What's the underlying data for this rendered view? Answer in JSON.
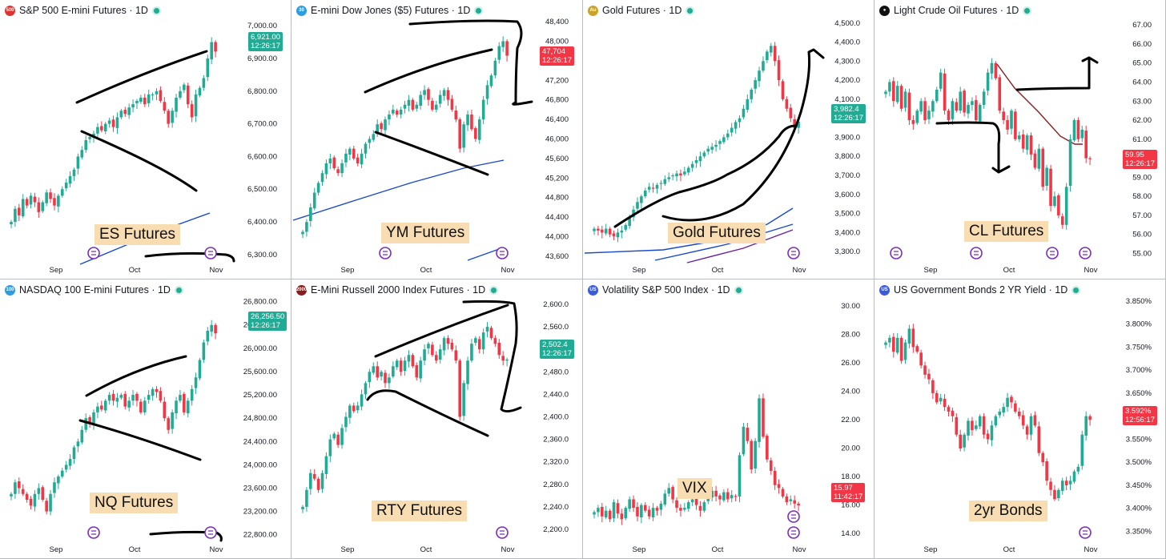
{
  "colors": {
    "up": "#22ab94",
    "down": "#f23645",
    "ma_blue": "#1848cc",
    "ma_purple": "#6a1fa0",
    "ink": "#000000",
    "tag_bg": "#f9ddb2"
  },
  "panels": [
    {
      "title": "S&P 500 E-mini Futures · 1D",
      "icon_text": "500",
      "icon_color": "#e03131",
      "tag": "ES Futures",
      "price": "6,921.00",
      "time": "12:26:17",
      "price_color": "#22ab94"
    },
    {
      "title": "E-mini Dow Jones ($5) Futures · 1D",
      "icon_text": "30",
      "icon_color": "#2f9be0",
      "tag": "YM Futures",
      "price": "47,704",
      "time": "12:26:17",
      "price_color": "#f23645"
    },
    {
      "title": "Gold Futures · 1D",
      "icon_text": "Au",
      "icon_color": "#c9a227",
      "tag": "Gold Futures",
      "price": "3,982.4",
      "time": "12:26:17",
      "price_color": "#22ab94"
    },
    {
      "title": "Light Crude Oil Futures · 1D",
      "icon_text": "●",
      "icon_color": "#111111",
      "tag": "CL Futures",
      "price": "59.95",
      "time": "12:26:17",
      "price_color": "#f23645"
    },
    {
      "title": "NASDAQ 100 E-mini Futures · 1D",
      "icon_text": "100",
      "icon_color": "#2f9be0",
      "tag": "NQ Futures",
      "price": "26,256.50",
      "time": "12:26:17",
      "price_color": "#22ab94"
    },
    {
      "title": "E-Mini Russell 2000 Index Futures · 1D",
      "icon_text": "2000",
      "icon_color": "#8b1c1c",
      "tag": "RTY Futures",
      "price": "2,502.4",
      "time": "12:26:17",
      "price_color": "#22ab94"
    },
    {
      "title": "Volatility S&P 500 Index · 1D",
      "icon_text": "US",
      "icon_color": "#3b5bdb",
      "tag": "VIX",
      "price": "15.97",
      "time": "11:42:17",
      "price_color": "#f23645"
    },
    {
      "title": "US Government Bonds 2 YR Yield · 1D",
      "icon_text": "US",
      "icon_color": "#3b5bdb",
      "tag": "2yr Bonds",
      "price": "3.592%",
      "time": "12:56:17",
      "price_color": "#f23645"
    }
  ],
  "chart_data": [
    {
      "type": "candlestick",
      "title": "S&P 500 E-mini Futures · 1D",
      "ylim": [
        6280,
        7020
      ],
      "y_ticks": [
        "7,000.00",
        "6,900.00",
        "6,800.00",
        "6,700.00",
        "6,600.00",
        "6,500.00",
        "6,400.00",
        "6,300.00"
      ],
      "x_labels": [
        "Sep",
        "Oct",
        "Nov"
      ],
      "closes": [
        6400,
        6440,
        6420,
        6470,
        6450,
        6480,
        6460,
        6430,
        6460,
        6490,
        6470,
        6450,
        6480,
        6500,
        6520,
        6540,
        6560,
        6600,
        6620,
        6650,
        6660,
        6670,
        6690,
        6680,
        6700,
        6710,
        6690,
        6720,
        6740,
        6730,
        6750,
        6760,
        6770,
        6780,
        6760,
        6790,
        6790,
        6800,
        6770,
        6740,
        6700,
        6740,
        6780,
        6800,
        6820,
        6760,
        6720,
        6790,
        6810,
        6840,
        6900,
        6950,
        6921
      ]
    },
    {
      "type": "candlestick",
      "title": "E-mini Dow Jones ($5) Futures · 1D",
      "ylim": [
        43500,
        48450
      ],
      "y_ticks": [
        "48,400",
        "48,000",
        "47,600",
        "47,200",
        "46,800",
        "46,400",
        "46,000",
        "45,600",
        "45,200",
        "44,800",
        "44,400",
        "44,000",
        "43,600"
      ],
      "x_labels": [
        "Sep",
        "Oct",
        "Nov"
      ],
      "closes": [
        44100,
        44300,
        44600,
        44900,
        45100,
        45300,
        45500,
        45600,
        45400,
        45300,
        45500,
        45700,
        45800,
        45600,
        45500,
        45700,
        45900,
        46000,
        46100,
        46300,
        46200,
        46400,
        46500,
        46600,
        46500,
        46600,
        46700,
        46800,
        46600,
        46700,
        46900,
        47000,
        46800,
        46600,
        46700,
        46900,
        47000,
        46800,
        46600,
        46400,
        45800,
        46300,
        46500,
        46200,
        46000,
        46400,
        46800,
        47100,
        47300,
        47600,
        47900,
        48000,
        47704
      ]
    },
    {
      "type": "candlestick",
      "title": "Gold Futures · 1D",
      "ylim": [
        3250,
        4520
      ],
      "y_ticks": [
        "4,500.0",
        "4,400.0",
        "4,300.0",
        "4,200.0",
        "4,100.0",
        "4,000.0",
        "3,900.0",
        "3,800.0",
        "3,700.0",
        "3,600.0",
        "3,500.0",
        "3,400.0",
        "3,300.0"
      ],
      "x_labels": [
        "Sep",
        "Oct",
        "Nov"
      ],
      "closes": [
        3420,
        3410,
        3400,
        3420,
        3390,
        3380,
        3400,
        3410,
        3440,
        3480,
        3520,
        3560,
        3590,
        3620,
        3640,
        3630,
        3650,
        3660,
        3680,
        3690,
        3700,
        3710,
        3700,
        3720,
        3740,
        3760,
        3780,
        3800,
        3820,
        3840,
        3850,
        3860,
        3880,
        3900,
        3920,
        3950,
        3980,
        4000,
        4050,
        4100,
        4150,
        4200,
        4250,
        4300,
        4350,
        4380,
        4300,
        4200,
        4100,
        4050,
        4000,
        3950,
        3982
      ]
    },
    {
      "type": "candlestick",
      "title": "Light Crude Oil Futures · 1D",
      "ylim": [
        54.6,
        67.3
      ],
      "y_ticks": [
        "67.00",
        "66.00",
        "65.00",
        "64.00",
        "63.00",
        "62.00",
        "61.00",
        "60.00",
        "59.00",
        "58.00",
        "57.00",
        "56.00",
        "55.00"
      ],
      "x_labels": [
        "Sep",
        "Oct",
        "Nov"
      ],
      "closes": [
        63.5,
        64,
        63,
        63.8,
        62.6,
        63.5,
        62,
        61.8,
        62.5,
        63,
        62,
        62.5,
        63,
        63.6,
        64.5,
        62.5,
        62,
        63,
        62.5,
        63.5,
        62.4,
        62.8,
        63,
        62,
        62.8,
        63.5,
        64.5,
        65,
        64.2,
        62.5,
        62,
        61.5,
        62.5,
        61,
        61.2,
        60.5,
        61.2,
        60.2,
        59.5,
        60.5,
        58.5,
        59.5,
        57.5,
        58,
        57,
        56.5,
        58.5,
        61,
        62,
        61,
        61.5,
        60,
        59.95
      ]
    },
    {
      "type": "candlestick",
      "title": "NASDAQ 100 E-mini Futures · 1D",
      "ylim": [
        22700,
        26850
      ],
      "y_ticks": [
        "26,800.00",
        "26,400.00",
        "26,000.00",
        "25,600.00",
        "25,200.00",
        "24,800.00",
        "24,400.00",
        "24,000.00",
        "23,600.00",
        "23,200.00",
        "22,800.00"
      ],
      "x_labels": [
        "Sep",
        "Oct",
        "Nov"
      ],
      "closes": [
        23500,
        23700,
        23600,
        23500,
        23400,
        23300,
        23500,
        23600,
        23400,
        23200,
        23500,
        23700,
        23800,
        23900,
        24000,
        24100,
        24300,
        24400,
        24600,
        24800,
        24700,
        24900,
        25000,
        24950,
        25100,
        25200,
        25100,
        25150,
        25200,
        25000,
        25100,
        25200,
        25100,
        24900,
        25100,
        25200,
        25300,
        25250,
        25100,
        24800,
        24600,
        24900,
        25100,
        25200,
        24900,
        25100,
        25300,
        25500,
        25800,
        26100,
        26300,
        26400,
        26256
      ]
    },
    {
      "type": "candlestick",
      "title": "E-Mini Russell 2000 Index Futures · 1D",
      "ylim": [
        2180,
        2610
      ],
      "y_ticks": [
        "2,600.0",
        "2,560.0",
        "2,520.0",
        "2,480.0",
        "2,440.0",
        "2,400.0",
        "2,360.0",
        "2,320.0",
        "2,280.0",
        "2,240.0",
        "2,200.0"
      ],
      "x_labels": [
        "Sep",
        "Oct",
        "Nov"
      ],
      "closes": [
        2240,
        2270,
        2300,
        2290,
        2270,
        2300,
        2330,
        2360,
        2370,
        2350,
        2380,
        2400,
        2420,
        2410,
        2420,
        2440,
        2460,
        2480,
        2490,
        2470,
        2480,
        2460,
        2470,
        2490,
        2500,
        2480,
        2500,
        2510,
        2490,
        2470,
        2500,
        2520,
        2530,
        2510,
        2500,
        2520,
        2540,
        2530,
        2520,
        2500,
        2400,
        2460,
        2500,
        2530,
        2540,
        2520,
        2550,
        2560,
        2540,
        2530,
        2510,
        2500,
        2502
      ]
    },
    {
      "type": "candlestick",
      "title": "Volatility S&P 500 Index · 1D",
      "ylim": [
        13.5,
        30.5
      ],
      "y_ticks": [
        "30.00",
        "28.00",
        "26.00",
        "24.00",
        "22.00",
        "20.00",
        "18.00",
        "16.00",
        "14.00"
      ],
      "x_labels": [
        "Sep",
        "Oct",
        "Nov"
      ],
      "closes": [
        15.5,
        15.8,
        15.2,
        15.6,
        15.0,
        16.2,
        15.4,
        15.0,
        15.8,
        16.4,
        15.8,
        15.2,
        16.0,
        15.6,
        15.2,
        15.8,
        15.6,
        16.1,
        16.8,
        17.2,
        16.4,
        15.8,
        15.6,
        15.8,
        16.2,
        16.4,
        16.0,
        15.6,
        16.2,
        16.6,
        17.0,
        16.6,
        16.4,
        16.9,
        16.4,
        16.7,
        16.6,
        19.5,
        21.5,
        20.5,
        18.5,
        20.5,
        23.5,
        20.8,
        19.2,
        18.4,
        17.4,
        17.2,
        16.6,
        16.2,
        16.4,
        16.1,
        15.97
      ]
    },
    {
      "type": "candlestick",
      "title": "US Government Bonds 2 YR Yield · 1D",
      "ylim": [
        3.33,
        3.855
      ],
      "y_ticks": [
        "3.850%",
        "3.800%",
        "3.750%",
        "3.700%",
        "3.650%",
        "3.600%",
        "3.550%",
        "3.500%",
        "3.450%",
        "3.400%",
        "3.350%"
      ],
      "x_labels": [
        "Sep",
        "Oct",
        "Nov"
      ],
      "closes": [
        3.76,
        3.77,
        3.74,
        3.77,
        3.72,
        3.76,
        3.79,
        3.75,
        3.74,
        3.71,
        3.69,
        3.68,
        3.65,
        3.63,
        3.64,
        3.62,
        3.61,
        3.6,
        3.56,
        3.53,
        3.56,
        3.59,
        3.57,
        3.58,
        3.6,
        3.56,
        3.55,
        3.58,
        3.6,
        3.61,
        3.62,
        3.64,
        3.63,
        3.61,
        3.6,
        3.58,
        3.56,
        3.6,
        3.58,
        3.52,
        3.5,
        3.46,
        3.44,
        3.42,
        3.44,
        3.46,
        3.45,
        3.46,
        3.48,
        3.49,
        3.56,
        3.6,
        3.592
      ]
    }
  ]
}
